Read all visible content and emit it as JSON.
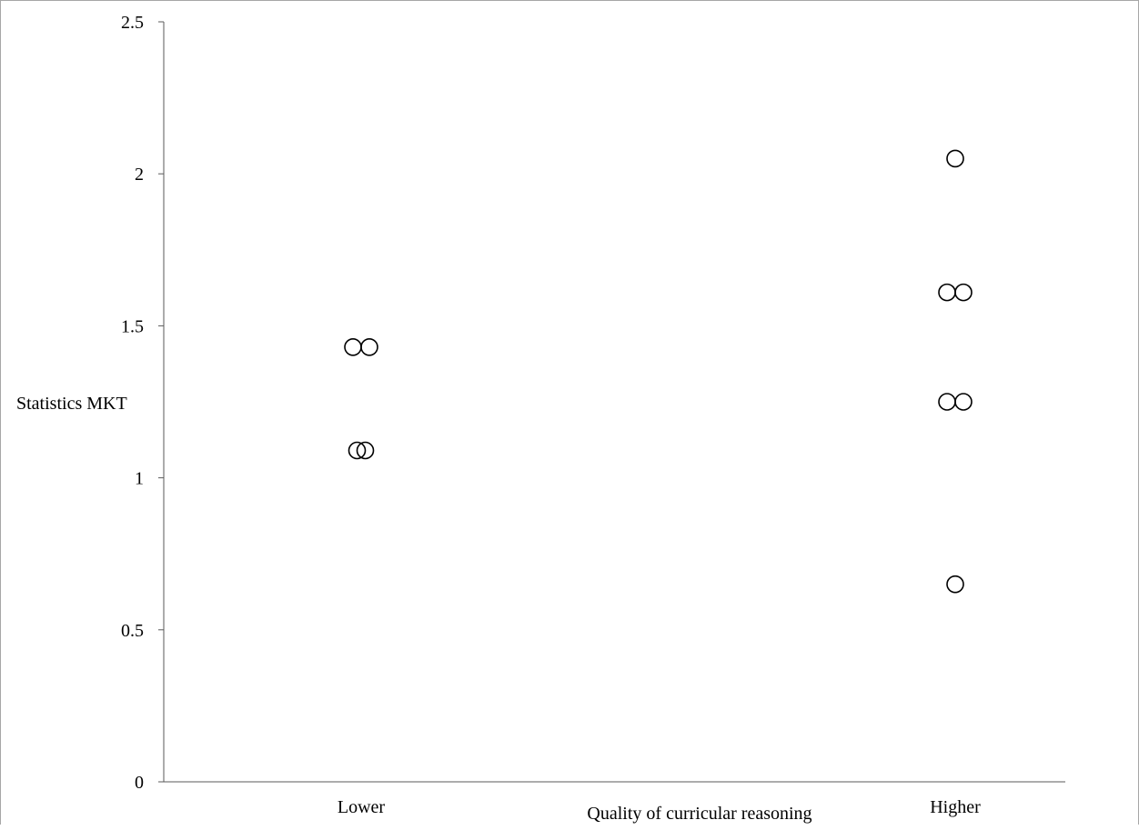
{
  "chart_data": {
    "type": "scatter",
    "title": "",
    "xlabel": "Quality of curricular reasoning",
    "ylabel": "Statistics MKT",
    "categories": [
      "Lower",
      "Higher"
    ],
    "ylim": [
      0,
      2.5
    ],
    "yticks": [
      "0",
      "0.5",
      "1",
      "1.5",
      "2",
      "2.5"
    ],
    "grid": false,
    "legend": "none",
    "marker": "open-circle",
    "colors": {
      "marker_stroke": "#000000",
      "axis": "#595959",
      "border": "#a6a6a6"
    },
    "series": [
      {
        "category": "Lower",
        "points": [
          {
            "y": 1.43,
            "offset": -1
          },
          {
            "y": 1.43,
            "offset": 1
          },
          {
            "y": 1.09,
            "offset": -0.5
          },
          {
            "y": 1.09,
            "offset": 0.5
          }
        ]
      },
      {
        "category": "Higher",
        "points": [
          {
            "y": 2.05,
            "offset": 0
          },
          {
            "y": 1.61,
            "offset": -1
          },
          {
            "y": 1.61,
            "offset": 1
          },
          {
            "y": 1.25,
            "offset": -1
          },
          {
            "y": 1.25,
            "offset": 1
          },
          {
            "y": 0.65,
            "offset": 0
          }
        ]
      }
    ]
  }
}
